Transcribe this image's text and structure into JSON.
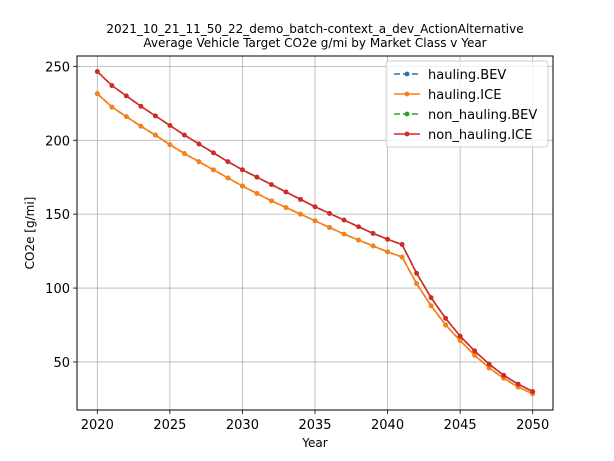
{
  "chart_data": {
    "type": "line",
    "title_line1": "2021_10_21_11_50_22_demo_batch-context_a_dev_ActionAlternative",
    "title_line2": "Average Vehicle Target CO2e g/mi by Market Class v Year",
    "xlabel": "Year",
    "ylabel": "CO2e [g/mi]",
    "xlim": [
      2018.6,
      2051.4
    ],
    "ylim": [
      17.5,
      257
    ],
    "xticks": [
      2020,
      2025,
      2030,
      2035,
      2040,
      2045,
      2050
    ],
    "yticks": [
      50,
      100,
      150,
      200,
      250
    ],
    "grid": true,
    "legend_position": "top-right",
    "x": [
      2020,
      2021,
      2022,
      2023,
      2024,
      2025,
      2026,
      2027,
      2028,
      2029,
      2030,
      2031,
      2032,
      2033,
      2034,
      2035,
      2036,
      2037,
      2038,
      2039,
      2040,
      2041,
      2042,
      2043,
      2044,
      2045,
      2046,
      2047,
      2048,
      2049,
      2050
    ],
    "series": [
      {
        "name": "hauling.BEV",
        "color": "#1f77b4",
        "dashed": true,
        "values": [
          231.5,
          222.5,
          216,
          209.5,
          203.5,
          197,
          191,
          185.5,
          180,
          174.5,
          169,
          164,
          159,
          154.5,
          150,
          145.5,
          141,
          136.5,
          132.5,
          128.5,
          124.5,
          121,
          103,
          88,
          75,
          64.5,
          54.5,
          46,
          39,
          33,
          28.5
        ]
      },
      {
        "name": "hauling.ICE",
        "color": "#ff7f0e",
        "dashed": false,
        "values": [
          231.5,
          222.5,
          216,
          209.5,
          203.5,
          197,
          191,
          185.5,
          180,
          174.5,
          169,
          164,
          159,
          154.5,
          150,
          145.5,
          141,
          136.5,
          132.5,
          128.5,
          124.5,
          121,
          103,
          88,
          75,
          64.5,
          54.5,
          46,
          39,
          33,
          28.5
        ]
      },
      {
        "name": "non_hauling.BEV",
        "color": "#2ca02c",
        "dashed": true,
        "values": [
          246.5,
          237,
          230,
          223,
          216.5,
          210,
          203.5,
          197.5,
          191.5,
          185.5,
          180,
          175,
          170,
          165,
          160,
          155,
          150.5,
          146,
          141.5,
          137,
          133,
          129.5,
          110,
          93.5,
          79.5,
          67.5,
          57.5,
          48.5,
          41,
          35,
          30
        ]
      },
      {
        "name": "non_hauling.ICE",
        "color": "#d62728",
        "dashed": false,
        "values": [
          246.5,
          237,
          230,
          223,
          216.5,
          210,
          203.5,
          197.5,
          191.5,
          185.5,
          180,
          175,
          170,
          165,
          160,
          155,
          150.5,
          146,
          141.5,
          137,
          133,
          129.5,
          110,
          93.5,
          79.5,
          67.5,
          57.5,
          48.5,
          41,
          35,
          30
        ]
      }
    ]
  }
}
